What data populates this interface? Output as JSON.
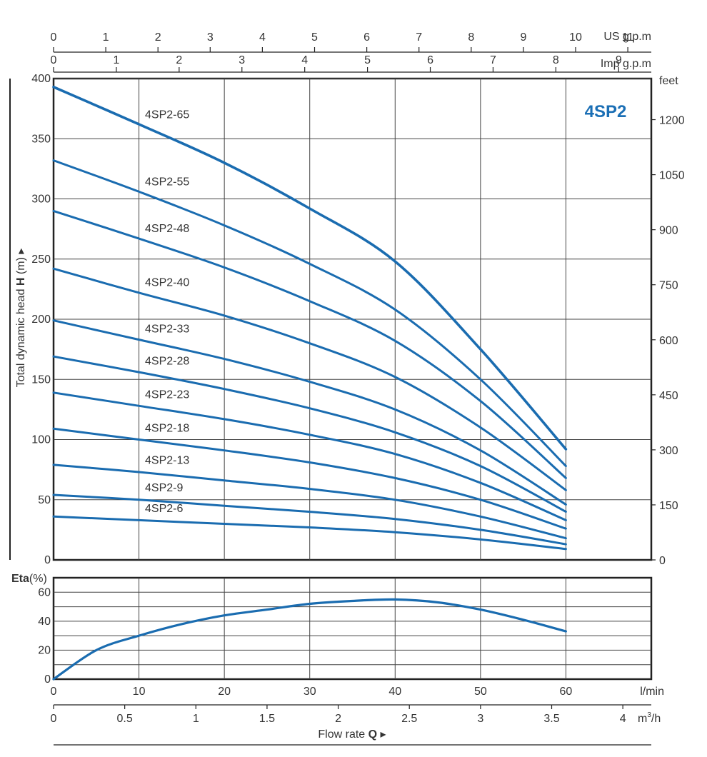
{
  "chart_data": [
    {
      "type": "line",
      "model_label": "4SP2",
      "top_axis_us": {
        "label": "US g.p.m",
        "ticks": [
          "0",
          "1",
          "2",
          "3",
          "4",
          "5",
          "6",
          "7",
          "8",
          "9",
          "10",
          "11"
        ],
        "range": [
          0,
          11.45
        ]
      },
      "top_axis_imp": {
        "label": "Imp g.p.m",
        "ticks": [
          "0",
          "1",
          "2",
          "3",
          "4",
          "5",
          "6",
          "7",
          "8",
          "9"
        ],
        "range": [
          0,
          9.52
        ]
      },
      "xlabel": "l/min",
      "x_ticks": [
        "0",
        "10",
        "20",
        "30",
        "40",
        "50",
        "60"
      ],
      "xlim": [
        0,
        70
      ],
      "ylabel_pre": "Total dynamic head ",
      "ylabel_bold": "H",
      "ylabel_post": " (m) ▸",
      "ylim": [
        0,
        400
      ],
      "y_ticks": [
        "0",
        "50",
        "100",
        "150",
        "200",
        "250",
        "300",
        "350",
        "400"
      ],
      "right_axis": {
        "label": "feet",
        "ticks": [
          "0",
          "150",
          "300",
          "450",
          "600",
          "750",
          "900",
          "1050",
          "1200"
        ],
        "range": [
          0,
          1312
        ]
      },
      "grid": true,
      "series": [
        {
          "name": "4SP2-65",
          "x": [
            0,
            10,
            20,
            30,
            40,
            50,
            60
          ],
          "y": [
            393,
            362,
            330,
            292,
            248,
            175,
            92
          ]
        },
        {
          "name": "4SP2-55",
          "x": [
            0,
            10,
            20,
            30,
            40,
            50,
            60
          ],
          "y": [
            332,
            306,
            278,
            246,
            208,
            150,
            78
          ]
        },
        {
          "name": "4SP2-48",
          "x": [
            0,
            10,
            20,
            30,
            40,
            50,
            60
          ],
          "y": [
            290,
            267,
            243,
            215,
            182,
            132,
            68
          ]
        },
        {
          "name": "4SP2-40",
          "x": [
            0,
            10,
            20,
            30,
            40,
            50,
            60
          ],
          "y": [
            242,
            222,
            203,
            180,
            152,
            110,
            58
          ]
        },
        {
          "name": "4SP2-33",
          "x": [
            0,
            10,
            20,
            30,
            40,
            50,
            60
          ],
          "y": [
            199,
            183,
            167,
            148,
            125,
            91,
            46
          ]
        },
        {
          "name": "4SP2-28",
          "x": [
            0,
            10,
            20,
            30,
            40,
            50,
            60
          ],
          "y": [
            169,
            156,
            142,
            126,
            106,
            78,
            40
          ]
        },
        {
          "name": "4SP2-23",
          "x": [
            0,
            10,
            20,
            30,
            40,
            50,
            60
          ],
          "y": [
            139,
            128,
            117,
            104,
            88,
            64,
            33
          ]
        },
        {
          "name": "4SP2-18",
          "x": [
            0,
            10,
            20,
            30,
            40,
            50,
            60
          ],
          "y": [
            109,
            100,
            91,
            81,
            68,
            50,
            26
          ]
        },
        {
          "name": "4SP2-13",
          "x": [
            0,
            10,
            20,
            30,
            40,
            50,
            60
          ],
          "y": [
            79,
            73,
            66,
            59,
            50,
            36,
            18
          ]
        },
        {
          "name": "4SP2-9",
          "x": [
            0,
            10,
            20,
            30,
            40,
            50,
            60
          ],
          "y": [
            54,
            50,
            45,
            40,
            34,
            25,
            13
          ]
        },
        {
          "name": "4SP2-6",
          "x": [
            0,
            10,
            20,
            30,
            40,
            50,
            60
          ],
          "y": [
            36,
            33,
            30,
            27,
            23,
            17,
            9
          ]
        }
      ]
    },
    {
      "type": "line",
      "ylabel_bold": "Eta",
      "ylabel_post": "(%)",
      "ylim": [
        0,
        70
      ],
      "y_ticks": [
        "0",
        "20",
        "40",
        "60"
      ],
      "xlim": [
        0,
        70
      ],
      "xlabel": "l/min",
      "x_ticks": [
        "0",
        "10",
        "20",
        "30",
        "40",
        "50",
        "60"
      ],
      "grid": true,
      "series": [
        {
          "name": "Eta",
          "x": [
            0,
            5,
            10,
            15,
            20,
            25,
            30,
            35,
            40,
            45,
            50,
            55,
            60
          ],
          "y": [
            0,
            20,
            30,
            38,
            44,
            48,
            52,
            54,
            55,
            53,
            48,
            41,
            33
          ]
        }
      ]
    }
  ],
  "bottom_axis_m3h": {
    "label_base": "m",
    "label_sup": "3",
    "label_tail": "/h",
    "ticks": [
      "0",
      "0.5",
      "1",
      "1.5",
      "2",
      "2.5",
      "3",
      "3.5",
      "4"
    ],
    "range": [
      0,
      4.2
    ]
  },
  "flow_label_pre": "Flow rate ",
  "flow_label_bold": "Q",
  "flow_label_post": " ▸",
  "colors": {
    "curve": "#1a6cb0",
    "frame": "#222222",
    "text": "#333333",
    "grid": "#444444",
    "accent": "#1b6fb5"
  }
}
